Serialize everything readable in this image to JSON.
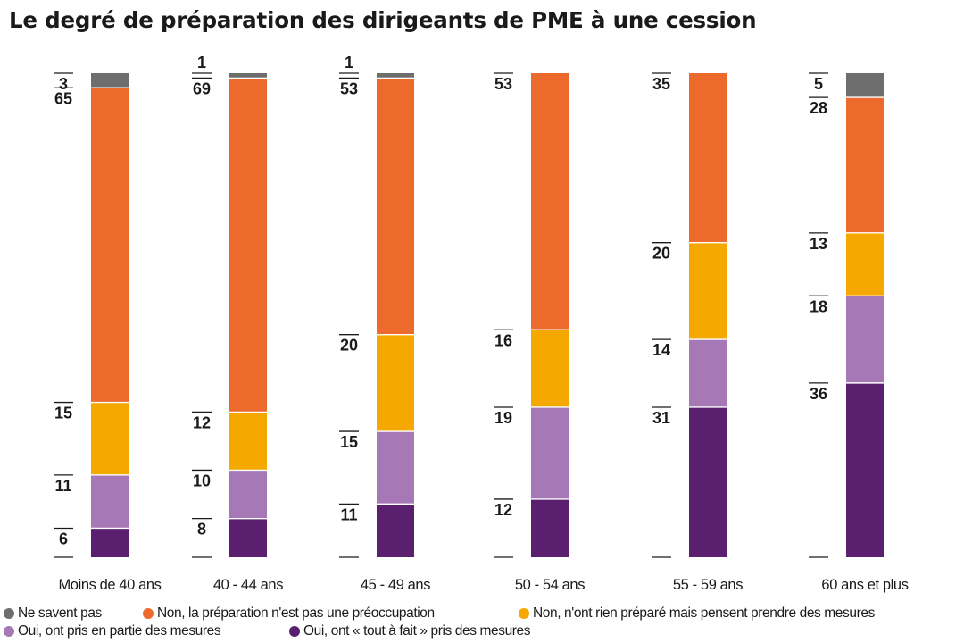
{
  "chart_data": {
    "type": "bar",
    "stacked": true,
    "title": "Le degré de préparation des dirigeants de PME à une cession",
    "categories": [
      "Moins de 40 ans",
      "40 - 44 ans",
      "45 - 49 ans",
      "50 - 54 ans",
      "55 - 59 ans",
      "60 ans et plus"
    ],
    "series": [
      {
        "name": "Oui, ont « tout à fait » pris des mesures",
        "color": "#5a1f6e",
        "values": [
          6,
          8,
          11,
          12,
          31,
          36
        ]
      },
      {
        "name": "Oui, ont pris en partie des mesures",
        "color": "#a679b6",
        "values": [
          11,
          10,
          15,
          19,
          14,
          18
        ]
      },
      {
        "name": "Non, n'ont rien préparé mais pensent prendre des mesures",
        "color": "#f5a800",
        "values": [
          15,
          12,
          20,
          16,
          20,
          13
        ]
      },
      {
        "name": "Non, la préparation n'est pas une préoccupation",
        "color": "#ec6a2c",
        "values": [
          65,
          69,
          53,
          53,
          35,
          28
        ]
      },
      {
        "name": "Ne savent pas",
        "color": "#6e6e6e",
        "values": [
          3,
          1,
          1,
          0,
          0,
          5
        ]
      }
    ],
    "data_labels": [
      [
        "6",
        "8",
        "11",
        "12",
        "31",
        "36"
      ],
      [
        "11",
        "10",
        "15",
        "19",
        "14",
        "18"
      ],
      [
        "15",
        "12",
        "20",
        "16",
        "20",
        "13"
      ],
      [
        "65",
        "69",
        "53",
        "53",
        "35",
        "28"
      ],
      [
        "3",
        "1",
        "1",
        "",
        "",
        "5"
      ]
    ],
    "xlabel": "",
    "ylabel": "",
    "ylim": [
      0,
      100
    ],
    "unit": "%",
    "legend": {
      "position": "bottom",
      "rows": [
        [
          "Ne savent pas",
          "Non, la préparation n'est pas une préoccupation",
          "Non, n'ont rien préparé mais pensent prendre des mesures"
        ],
        [
          "Oui, ont pris en partie des mesures",
          "Oui, ont « tout à fait » pris des mesures"
        ]
      ]
    }
  }
}
